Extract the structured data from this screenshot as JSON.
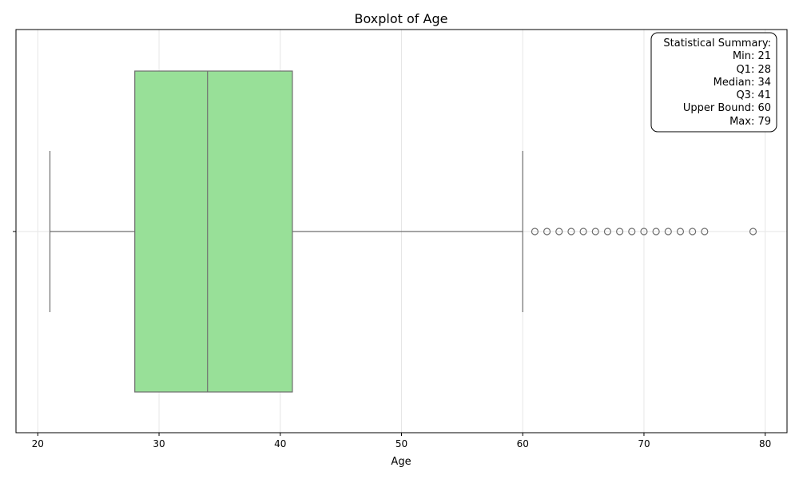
{
  "chart_data": {
    "type": "boxplot",
    "title": "Boxplot of Age",
    "xlabel": "Age",
    "ylabel": "",
    "orientation": "horizontal",
    "xlim": [
      18.2,
      81.8
    ],
    "xticks": [
      20,
      30,
      40,
      50,
      60,
      70,
      80
    ],
    "grid": true,
    "box_color": "#98e098",
    "line_color": "#6e6e6e",
    "stats": {
      "min": 21,
      "q1": 28,
      "median": 34,
      "q3": 41,
      "whisker_low": 21,
      "whisker_high": 60,
      "max": 79
    },
    "outliers": [
      61,
      62,
      63,
      64,
      65,
      66,
      67,
      68,
      69,
      70,
      71,
      72,
      73,
      74,
      75,
      79
    ],
    "summary_box": {
      "placement": "top-right",
      "lines": [
        "Statistical Summary:",
        "Min: 21",
        "Q1: 28",
        "Median: 34",
        "Q3: 41",
        "Upper Bound: 60",
        "Max: 79"
      ]
    }
  }
}
